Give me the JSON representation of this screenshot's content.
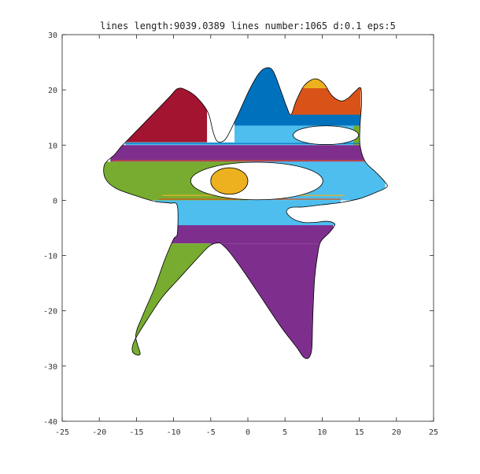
{
  "chart_data": {
    "type": "area",
    "title": "lines length:9039.0389 lines number:1065 d:0.1 eps:5",
    "xlabel": "",
    "ylabel": "",
    "xlim": [
      -25,
      25
    ],
    "ylim": [
      -40,
      30
    ],
    "xticks": [
      "-25",
      "-20",
      "-15",
      "-10",
      "-5",
      "0",
      "5",
      "10",
      "15",
      "20",
      "25"
    ],
    "yticks": [
      "-40",
      "-30",
      "-20",
      "-10",
      "0",
      "10",
      "20",
      "30"
    ],
    "grid": false,
    "legend": "none",
    "colors": {
      "red": "#a2142f",
      "blue": "#0072bd",
      "yellow": "#edb120",
      "orange": "#d95319",
      "lightblue": "#4dbeee",
      "green": "#77ac30",
      "purple": "#7e2f8e",
      "background": "#ffffff",
      "outline": "#000000"
    },
    "fill_bands": [
      {
        "color": "red",
        "y": [
          10.5,
          20.3
        ],
        "x": [
          -16.5,
          -5.5
        ]
      },
      {
        "color": "blue",
        "y": [
          13.5,
          24.0
        ],
        "x": [
          -1.8,
          15.2
        ]
      },
      {
        "color": "yellow",
        "y": [
          17.8,
          22.0
        ],
        "x": [
          6.4,
          12.3
        ]
      },
      {
        "color": "orange",
        "y": [
          15.5,
          20.3
        ],
        "x": [
          5.8,
          15.2
        ]
      },
      {
        "color": "green",
        "y": [
          10.0,
          13.5
        ],
        "x": [
          14.2,
          15.2
        ]
      },
      {
        "color": "lightblue",
        "y": [
          10.0,
          13.5
        ],
        "x": [
          -1.8,
          14.2
        ]
      },
      {
        "color": "lightblue",
        "y": [
          10.0,
          10.5
        ],
        "x": [
          -16.5,
          -1.8
        ]
      },
      {
        "color": "purple",
        "y": [
          7.0,
          10.0
        ],
        "x": [
          -18.5,
          16.5
        ]
      },
      {
        "color": "green",
        "y": [
          0.0,
          7.0
        ],
        "x": [
          -19.5,
          0.0
        ]
      },
      {
        "color": "lightblue",
        "y": [
          0.0,
          7.0
        ],
        "x": [
          0.0,
          18.5
        ]
      },
      {
        "color": "lightblue",
        "y": [
          -4.5,
          0.0
        ],
        "x": [
          -12.5,
          12.5
        ]
      },
      {
        "color": "purple",
        "y": [
          -7.8,
          -4.5
        ],
        "x": [
          -10.5,
          11.5
        ]
      },
      {
        "color": "green",
        "y": [
          -28.0,
          -7.8
        ],
        "x": [
          -16.0,
          -5.0
        ]
      },
      {
        "color": "purple",
        "y": [
          -29.0,
          -7.8
        ],
        "x": [
          -5.0,
          11.0
        ]
      }
    ],
    "holes": [
      {
        "type": "ellipse",
        "cx": 1.2,
        "cy": 3.5,
        "rx": 8.9,
        "ry": 3.4
      },
      {
        "type": "ellipse",
        "cx": 10.5,
        "cy": 11.8,
        "rx": 4.4,
        "ry": 1.7
      }
    ],
    "islands": [
      {
        "type": "ellipse",
        "color": "yellow",
        "cx": -2.5,
        "cy": 3.5,
        "rx": 2.5,
        "ry": 2.4
      }
    ],
    "outline": [
      [
        -16.5,
        10.5
      ],
      [
        -12.5,
        16.0
      ],
      [
        -10.5,
        18.8
      ],
      [
        -9.5,
        20.2
      ],
      [
        -8.5,
        20.1
      ],
      [
        -7.0,
        18.8
      ],
      [
        -5.4,
        16.0
      ],
      [
        -4.7,
        12.5
      ],
      [
        -4.2,
        10.8
      ],
      [
        -3.5,
        10.6
      ],
      [
        -2.8,
        11.5
      ],
      [
        -1.5,
        15.0
      ],
      [
        0.2,
        20.0
      ],
      [
        1.5,
        23.0
      ],
      [
        2.5,
        24.0
      ],
      [
        3.4,
        23.4
      ],
      [
        4.4,
        20.0
      ],
      [
        5.2,
        17.0
      ],
      [
        5.8,
        15.5
      ],
      [
        6.5,
        18.0
      ],
      [
        7.6,
        20.8
      ],
      [
        9.0,
        22.0
      ],
      [
        10.2,
        21.2
      ],
      [
        11.3,
        19.0
      ],
      [
        12.5,
        18.0
      ],
      [
        13.5,
        18.5
      ],
      [
        14.5,
        19.8
      ],
      [
        15.2,
        20.3
      ],
      [
        15.3,
        17.5
      ],
      [
        15.1,
        13.5
      ],
      [
        15.1,
        10.0
      ],
      [
        15.8,
        7.0
      ],
      [
        17.3,
        5.0
      ],
      [
        18.4,
        3.4
      ],
      [
        18.7,
        2.4
      ],
      [
        17.0,
        1.3
      ],
      [
        15.0,
        0.3
      ],
      [
        12.5,
        -0.4
      ],
      [
        10.0,
        -0.8
      ],
      [
        7.5,
        -1.2
      ],
      [
        5.8,
        -1.3
      ],
      [
        5.2,
        -2.1
      ],
      [
        6.0,
        -3.3
      ],
      [
        7.5,
        -4.0
      ],
      [
        9.0,
        -4.0
      ],
      [
        10.5,
        -3.8
      ],
      [
        11.4,
        -4.0
      ],
      [
        11.7,
        -4.5
      ],
      [
        11.0,
        -5.8
      ],
      [
        9.8,
        -7.5
      ],
      [
        9.4,
        -9.8
      ],
      [
        9.0,
        -14.0
      ],
      [
        8.8,
        -19.0
      ],
      [
        8.7,
        -23.0
      ],
      [
        8.6,
        -27.0
      ],
      [
        8.2,
        -28.5
      ],
      [
        7.5,
        -28.4
      ],
      [
        6.5,
        -26.5
      ],
      [
        4.5,
        -23.0
      ],
      [
        2.0,
        -18.0
      ],
      [
        -0.5,
        -13.0
      ],
      [
        -2.4,
        -9.5
      ],
      [
        -3.3,
        -8.2
      ],
      [
        -4.0,
        -7.7
      ],
      [
        -5.2,
        -8.3
      ],
      [
        -7.0,
        -10.8
      ],
      [
        -9.5,
        -14.5
      ],
      [
        -11.5,
        -17.5
      ],
      [
        -13.5,
        -21.5
      ],
      [
        -15.3,
        -25.5
      ],
      [
        -15.5,
        -27.5
      ],
      [
        -14.5,
        -27.8
      ],
      [
        -15.1,
        -24.5
      ],
      [
        -14.2,
        -21.0
      ],
      [
        -12.6,
        -16.0
      ],
      [
        -11.2,
        -10.8
      ],
      [
        -10.0,
        -7.0
      ],
      [
        -9.5,
        -6.0
      ],
      [
        -9.5,
        -1.0
      ],
      [
        -10.5,
        -0.5
      ],
      [
        -12.5,
        -0.2
      ],
      [
        -15.0,
        0.8
      ],
      [
        -17.8,
        2.2
      ],
      [
        -19.2,
        4.0
      ],
      [
        -19.3,
        6.5
      ],
      [
        -18.0,
        8.2
      ],
      [
        -17.2,
        9.5
      ]
    ],
    "separator_lines": [
      {
        "y": 0.2,
        "x": [
          -12.0,
          12.5
        ],
        "color": "orange"
      },
      {
        "y": 0.9,
        "x": [
          -11.5,
          13.0
        ],
        "color": "yellow"
      },
      {
        "y": 10.3,
        "x": [
          -16.5,
          15.2
        ],
        "color": "blue"
      },
      {
        "y": 7.2,
        "x": [
          -18.2,
          16.0
        ],
        "color": "orange"
      }
    ]
  }
}
